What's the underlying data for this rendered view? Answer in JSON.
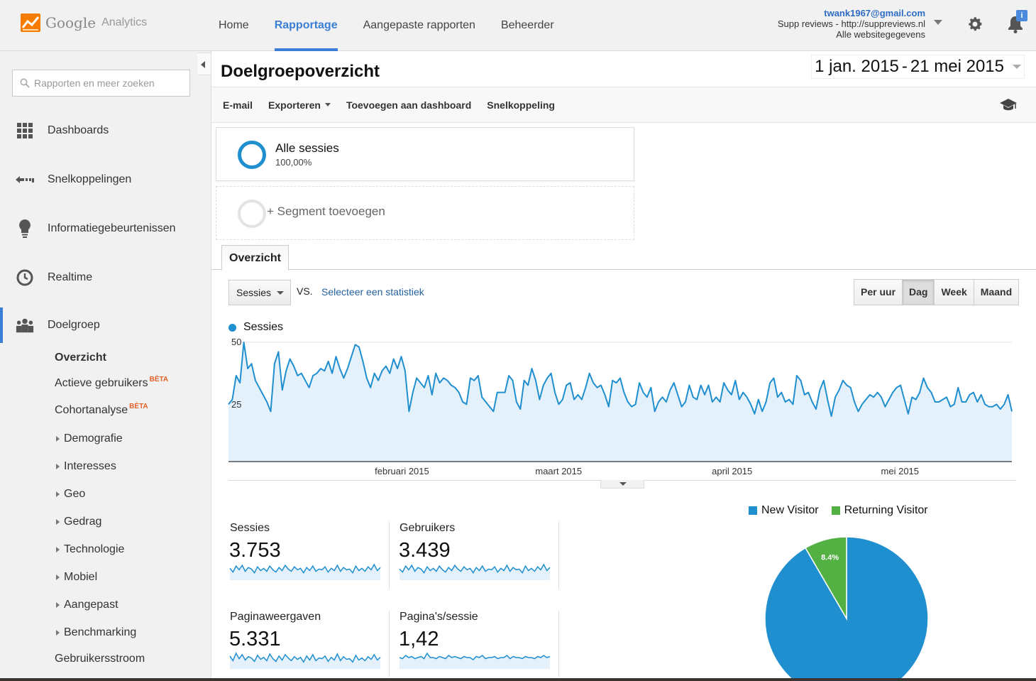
{
  "app": {
    "logo_google": "Google",
    "logo_analytics": "Analytics"
  },
  "topnav": [
    {
      "label": "Home",
      "active": false
    },
    {
      "label": "Rapportage",
      "active": true
    },
    {
      "label": "Aangepaste rapporten",
      "active": false
    },
    {
      "label": "Beheerder",
      "active": false
    }
  ],
  "account": {
    "email": "twank1967@gmail.com",
    "property": "Supp reviews - http://suppreviews.nl",
    "view": "Alle websitegegevens"
  },
  "notifications": {
    "badge": "i"
  },
  "sidebar": {
    "search_placeholder": "Rapporten en meer zoeken",
    "main_items": [
      {
        "label": "Dashboards",
        "icon": "grid-icon"
      },
      {
        "label": "Snelkoppelingen",
        "icon": "shortcut-arrow-icon"
      },
      {
        "label": "Informatiegebeurtenissen",
        "icon": "lightbulb-icon"
      },
      {
        "label": "Realtime",
        "icon": "clock-icon"
      },
      {
        "label": "Doelgroep",
        "icon": "people-icon",
        "active": true
      }
    ],
    "sub_items": {
      "overview": "Overzicht",
      "active_users": "Actieve gebruikers",
      "cohort": "Cohortanalyse",
      "beta": "BÈTA",
      "tree": [
        "Demografie",
        "Interesses",
        "Geo",
        "Gedrag",
        "Technologie",
        "Mobiel",
        "Aangepast",
        "Benchmarking"
      ],
      "flow": "Gebruikersstroom"
    }
  },
  "page": {
    "title": "Doelgroepoverzicht",
    "date_start": "1 jan. 2015",
    "date_sep": "-",
    "date_end": "21 mei 2015"
  },
  "toolbar": {
    "email": "E-mail",
    "export": "Exporteren",
    "add_dashboard": "Toevoegen aan dashboard",
    "shortcut": "Snelkoppeling"
  },
  "segments": {
    "all_name": "Alle sessies",
    "all_pct": "100,00%",
    "add_label": "+ Segment toevoegen"
  },
  "tabs": {
    "overview": "Overzicht"
  },
  "controls": {
    "metric": "Sessies",
    "vs": "VS.",
    "select_stat": "Selecteer een statistiek",
    "granularity": [
      {
        "label": "Per uur",
        "active": false
      },
      {
        "label": "Dag",
        "active": true
      },
      {
        "label": "Week",
        "active": false
      },
      {
        "label": "Maand",
        "active": false
      }
    ]
  },
  "colors": {
    "accent": "#3a7fd5",
    "series": "#1f8fd0",
    "series_fill": "#e5f1fa",
    "new_visitor": "#1f8fd0",
    "returning_visitor": "#53b043",
    "beta": "#e2622b"
  },
  "chart_data": [
    {
      "type": "line",
      "series": [
        {
          "name": "Sessies",
          "values": [
            24,
            26,
            36,
            33,
            50,
            39,
            41,
            34,
            31,
            28,
            25,
            21,
            41,
            46,
            30,
            38,
            43,
            40,
            36,
            37,
            34,
            31,
            36,
            37,
            39,
            38,
            42,
            37,
            44,
            39,
            35,
            39,
            44,
            49,
            48,
            42,
            35,
            31,
            37,
            34,
            38,
            40,
            37,
            43,
            39,
            44,
            38,
            21,
            29,
            35,
            33,
            31,
            36,
            28,
            37,
            33,
            35,
            34,
            32,
            31,
            29,
            25,
            24,
            35,
            34,
            36,
            27,
            25,
            23,
            21,
            29,
            29,
            29,
            36,
            34,
            25,
            22,
            34,
            32,
            39,
            34,
            26,
            32,
            35,
            37,
            29,
            24,
            26,
            32,
            33,
            26,
            28,
            26,
            31,
            37,
            33,
            31,
            32,
            28,
            23,
            34,
            33,
            35,
            29,
            25,
            23,
            24,
            33,
            29,
            27,
            31,
            21,
            25,
            27,
            25,
            30,
            33,
            28,
            23,
            25,
            32,
            27,
            26,
            32,
            28,
            32,
            25,
            27,
            25,
            33,
            30,
            28,
            34,
            26,
            29,
            27,
            24,
            20,
            26,
            21,
            25,
            33,
            35,
            27,
            29,
            25,
            26,
            24,
            36,
            34,
            28,
            29,
            25,
            22,
            30,
            34,
            26,
            19,
            27,
            30,
            34,
            32,
            31,
            25,
            21,
            24,
            26,
            28,
            27,
            29,
            27,
            23,
            26,
            29,
            31,
            32,
            26,
            20,
            27,
            26,
            29,
            35,
            31,
            29,
            25,
            25,
            26,
            27,
            23,
            24,
            31,
            25,
            25,
            28,
            29,
            25,
            28,
            24,
            23,
            23,
            24,
            22,
            24,
            28,
            21
          ]
        }
      ],
      "x_labels": [
        "februari 2015",
        "maart 2015",
        "april 2015",
        "mei 2015"
      ],
      "y_ticks": [
        "50",
        "25"
      ],
      "ylim": [
        0,
        50
      ],
      "grid": true
    },
    {
      "type": "pie",
      "slices": [
        {
          "name": "New Visitor",
          "value": 91.6,
          "label": "91.6%"
        },
        {
          "name": "Returning Visitor",
          "value": 8.4,
          "label": "8.4%"
        }
      ],
      "legend": "top"
    }
  ],
  "kpis": [
    {
      "label": "Sessies",
      "value": "3.753",
      "spark": [
        30,
        25,
        33,
        28,
        34,
        26,
        31,
        29,
        24,
        32,
        27,
        30,
        26,
        33,
        28,
        25,
        31,
        27,
        34,
        29,
        26,
        32,
        28,
        30,
        24,
        31,
        27,
        33,
        26,
        29,
        28,
        32,
        25,
        30,
        27,
        34,
        26,
        31,
        28,
        29,
        24,
        33,
        27,
        30,
        26,
        32,
        28,
        35,
        27,
        31
      ]
    },
    {
      "label": "Gebruikers",
      "value": "3.439",
      "spark": [
        28,
        24,
        32,
        27,
        33,
        25,
        30,
        28,
        23,
        31,
        26,
        29,
        25,
        32,
        27,
        24,
        30,
        26,
        33,
        28,
        25,
        31,
        27,
        29,
        23,
        30,
        26,
        32,
        25,
        28,
        27,
        31,
        24,
        29,
        26,
        33,
        25,
        30,
        27,
        28,
        23,
        32,
        26,
        29,
        25,
        31,
        27,
        34,
        26,
        30
      ]
    },
    {
      "label": "Paginaweergaven",
      "value": "5.331",
      "spark": [
        34,
        27,
        38,
        30,
        36,
        28,
        33,
        31,
        26,
        35,
        29,
        32,
        27,
        37,
        30,
        26,
        34,
        28,
        36,
        31,
        27,
        33,
        29,
        32,
        25,
        34,
        28,
        36,
        27,
        31,
        30,
        34,
        26,
        32,
        28,
        37,
        27,
        33,
        29,
        30,
        25,
        35,
        28,
        31,
        27,
        33,
        29,
        36,
        28,
        32
      ]
    },
    {
      "label": "Pagina's/sessie",
      "value": "1,42",
      "spark": [
        30,
        29,
        32,
        30,
        31,
        29,
        30,
        31,
        29,
        34,
        30,
        30,
        29,
        31,
        30,
        29,
        32,
        30,
        31,
        30,
        29,
        31,
        30,
        30,
        28,
        31,
        30,
        32,
        29,
        30,
        30,
        31,
        29,
        30,
        30,
        32,
        29,
        31,
        30,
        30,
        29,
        31,
        30,
        30,
        29,
        31,
        30,
        32,
        30,
        31
      ]
    }
  ]
}
